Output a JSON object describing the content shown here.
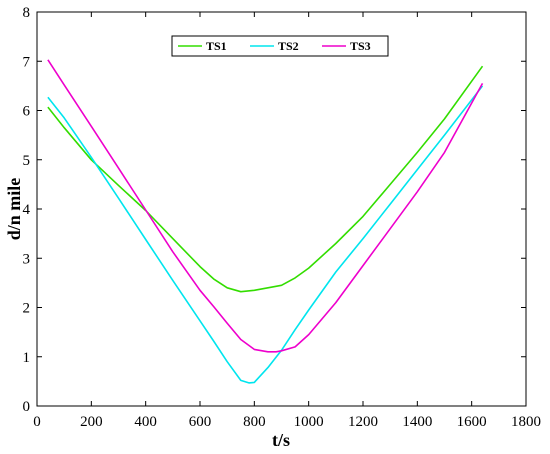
{
  "chart_data": {
    "type": "line",
    "title": "",
    "xlabel": "t/s",
    "ylabel": "d/n mile",
    "xlim": [
      0,
      1800
    ],
    "ylim": [
      0,
      8
    ],
    "xticks": [
      0,
      200,
      400,
      600,
      800,
      1000,
      1200,
      1400,
      1600,
      1800
    ],
    "yticks": [
      0,
      1,
      2,
      3,
      4,
      5,
      6,
      7,
      8
    ],
    "grid": false,
    "legend_position": "top-center",
    "series": [
      {
        "name": "TS1",
        "color": "#33dd00",
        "x": [
          40,
          100,
          200,
          300,
          400,
          500,
          600,
          650,
          700,
          750,
          800,
          850,
          900,
          950,
          1000,
          1100,
          1200,
          1300,
          1400,
          1500,
          1640
        ],
        "y": [
          6.07,
          5.65,
          5.0,
          4.48,
          3.97,
          3.4,
          2.83,
          2.58,
          2.4,
          2.32,
          2.35,
          2.4,
          2.45,
          2.6,
          2.8,
          3.3,
          3.85,
          4.5,
          5.15,
          5.83,
          6.9
        ]
      },
      {
        "name": "TS2",
        "color": "#00e5ee",
        "x": [
          40,
          100,
          200,
          300,
          400,
          500,
          600,
          650,
          700,
          750,
          780,
          800,
          850,
          900,
          950,
          1000,
          1100,
          1200,
          1300,
          1400,
          1500,
          1640
        ],
        "y": [
          6.27,
          5.85,
          5.05,
          4.22,
          3.38,
          2.55,
          1.73,
          1.32,
          0.9,
          0.52,
          0.47,
          0.48,
          0.78,
          1.13,
          1.55,
          1.95,
          2.72,
          3.4,
          4.1,
          4.8,
          5.5,
          6.5
        ]
      },
      {
        "name": "TS3",
        "color": "#ee00cc",
        "x": [
          40,
          100,
          200,
          300,
          400,
          500,
          600,
          650,
          700,
          750,
          800,
          850,
          880,
          900,
          950,
          1000,
          1100,
          1200,
          1300,
          1400,
          1500,
          1640
        ],
        "y": [
          7.03,
          6.52,
          5.68,
          4.83,
          3.98,
          3.13,
          2.35,
          2.02,
          1.68,
          1.35,
          1.15,
          1.1,
          1.1,
          1.12,
          1.2,
          1.45,
          2.1,
          2.85,
          3.6,
          4.35,
          5.15,
          6.55
        ]
      }
    ]
  }
}
